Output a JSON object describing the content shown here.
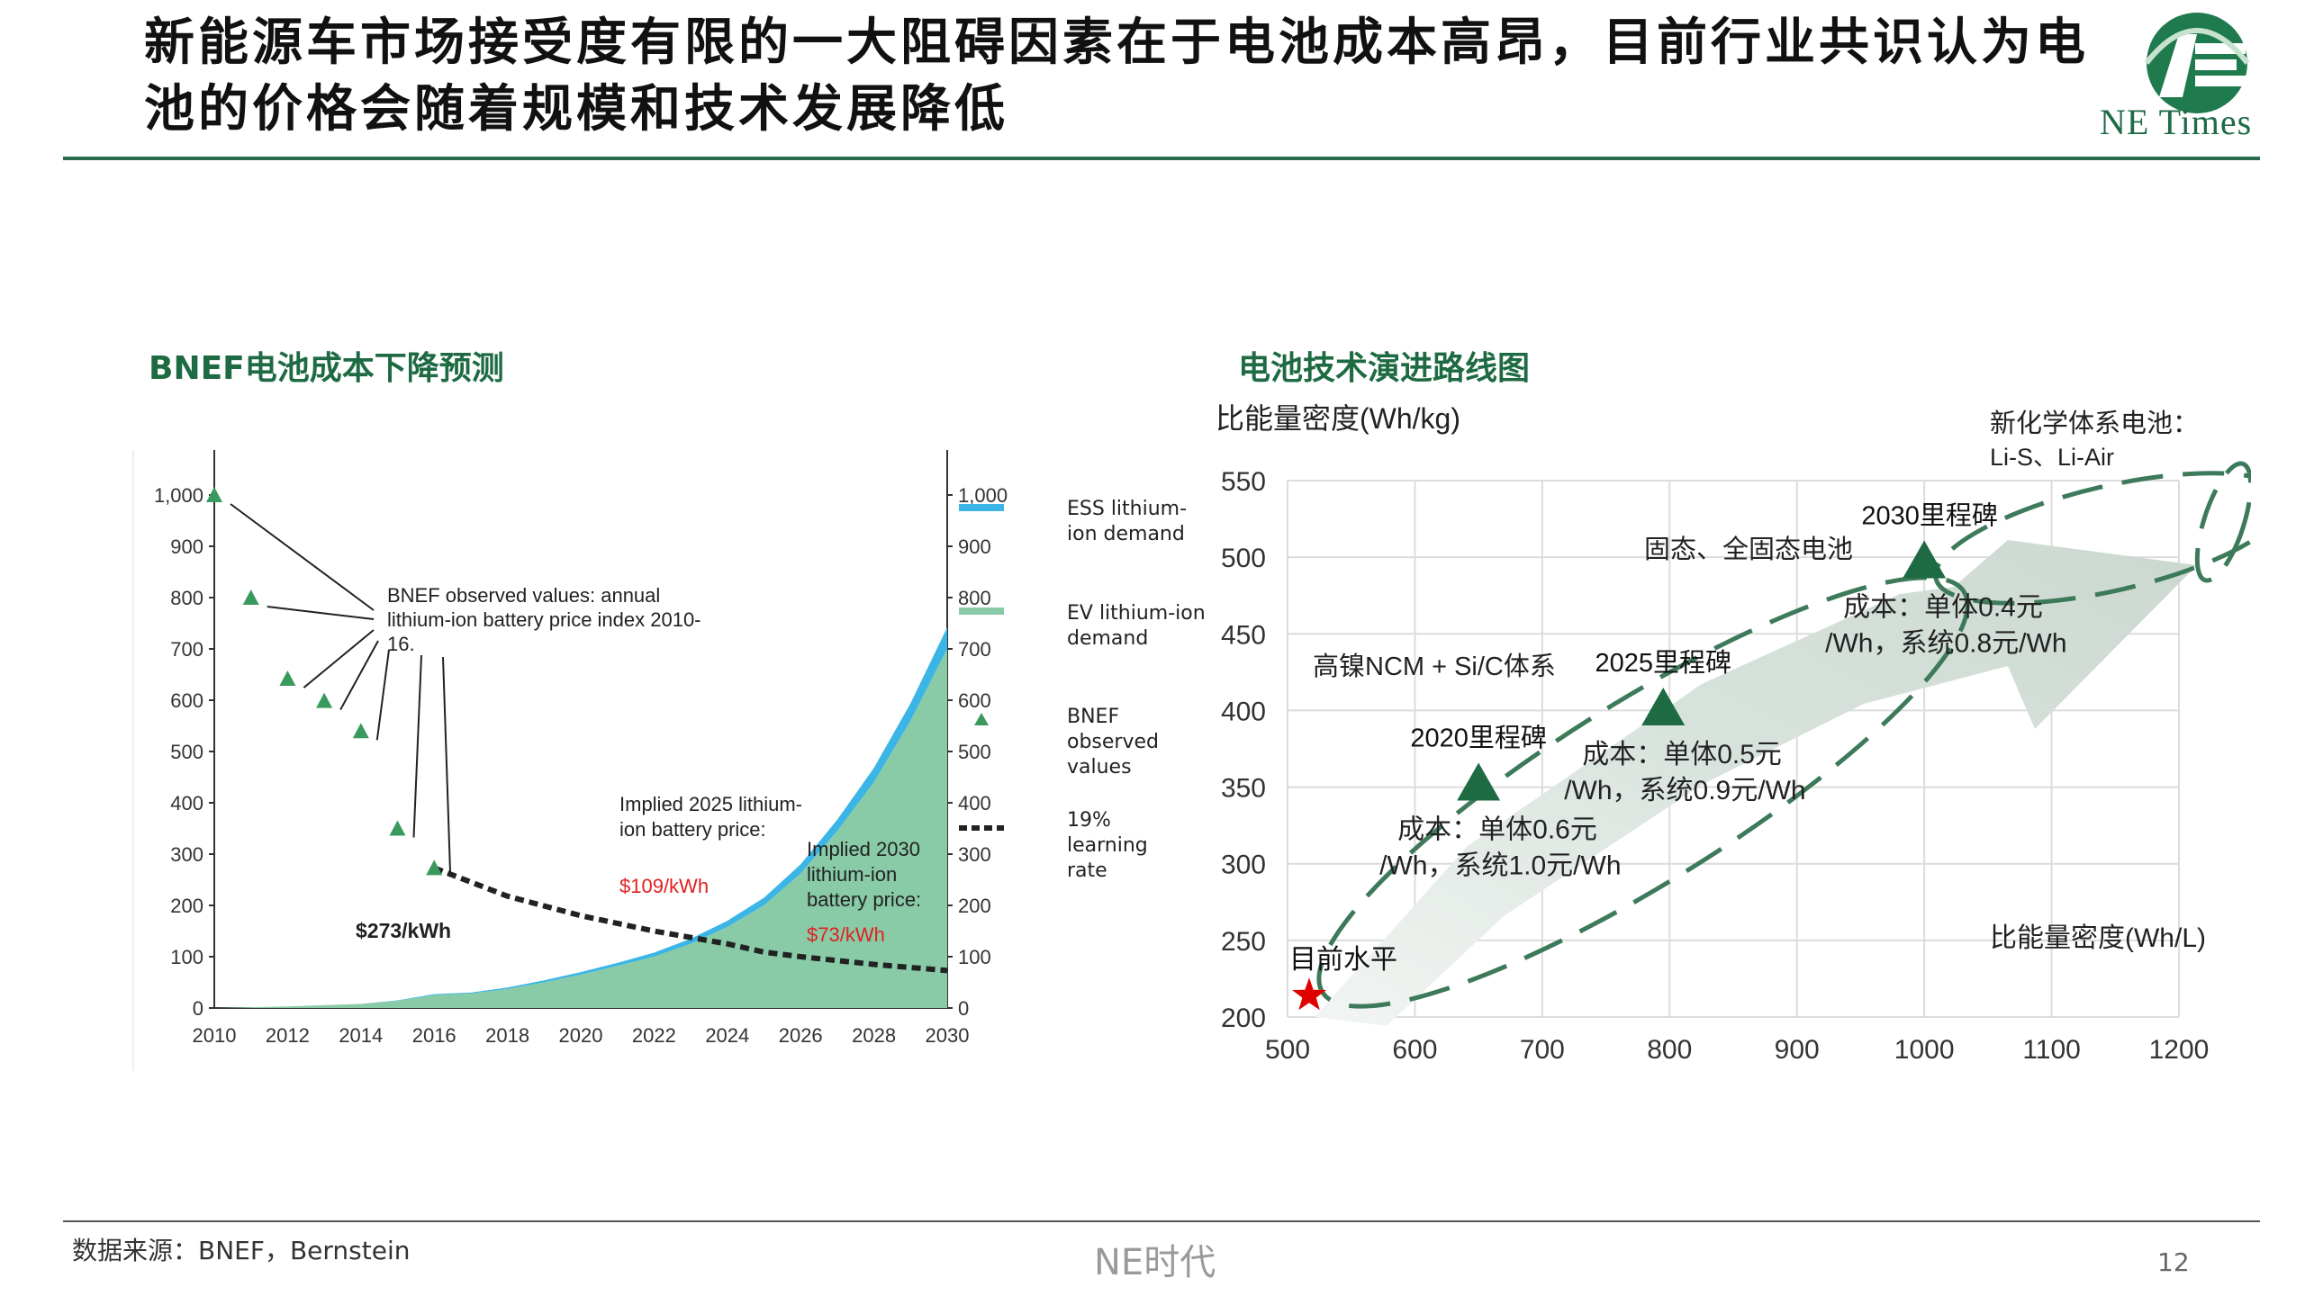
{
  "title": "新能源车市场接受度有限的一大阻碍因素在于电池成本高昂，目前行业共识认为电池的价格会随着规模和技术发展降低",
  "logo": {
    "text": "NE Times",
    "icon": "ne-times-logo",
    "brand_color": "#1f6b47"
  },
  "left_section_title": "BNEF电池成本下降预测",
  "right_section_title": "电池技术演进路线图",
  "footer": {
    "source": "数据来源：BNEF，Bernstein",
    "center": "NE时代",
    "page": "12"
  },
  "left_chart_data": {
    "type": "area",
    "x_ticks": [
      "2010",
      "2012",
      "2014",
      "2016",
      "2018",
      "2020",
      "2022",
      "2024",
      "2026",
      "2028",
      "2030"
    ],
    "y_ticks": [
      "0",
      "100",
      "200",
      "300",
      "400",
      "500",
      "600",
      "700",
      "800",
      "900",
      "1,000"
    ],
    "ylim": [
      0,
      1000
    ],
    "xlim": [
      2010,
      2030
    ],
    "demand_years": [
      2010,
      2012,
      2014,
      2015,
      2016,
      2017,
      2018,
      2019,
      2020,
      2021,
      2022,
      2023,
      2024,
      2025,
      2026,
      2027,
      2028,
      2029,
      2030
    ],
    "ev_demand": [
      0,
      3,
      8,
      14,
      25,
      28,
      37,
      50,
      65,
      82,
      100,
      125,
      158,
      200,
      262,
      345,
      440,
      560,
      700
    ],
    "ess_demand": [
      0,
      0,
      0,
      1,
      2,
      2,
      3,
      4,
      5,
      6,
      8,
      10,
      12,
      15,
      18,
      22,
      28,
      34,
      42
    ],
    "bnef_observed": [
      {
        "x": 2010,
        "y": 1000
      },
      {
        "x": 2011,
        "y": 800
      },
      {
        "x": 2012,
        "y": 642
      },
      {
        "x": 2013,
        "y": 599
      },
      {
        "x": 2014,
        "y": 540
      },
      {
        "x": 2015,
        "y": 350
      },
      {
        "x": 2016,
        "y": 273
      }
    ],
    "learning_rate_line": [
      {
        "x": 2016,
        "y": 273
      },
      {
        "x": 2018,
        "y": 218
      },
      {
        "x": 2020,
        "y": 180
      },
      {
        "x": 2022,
        "y": 150
      },
      {
        "x": 2024,
        "y": 125
      },
      {
        "x": 2025,
        "y": 109
      },
      {
        "x": 2026,
        "y": 100
      },
      {
        "x": 2028,
        "y": 85
      },
      {
        "x": 2030,
        "y": 73
      }
    ],
    "legend": [
      {
        "label": "ESS lithium-ion demand",
        "color": "#3bb5e5",
        "kind": "area"
      },
      {
        "label": "EV lithium-ion demand",
        "color": "#88cba6",
        "kind": "area"
      },
      {
        "label": "BNEF observed values",
        "color": "#3a9a5e",
        "kind": "triangle"
      },
      {
        "label": "19% learning rate",
        "color": "#222222",
        "kind": "dash"
      }
    ],
    "annotations": {
      "observed": "BNEF observed values: annual lithium-ion battery price index 2010-16.",
      "price_2016": "$273/kWh",
      "implied_2025": "Implied 2025 lithium-ion battery price:",
      "implied_2025_value": "$109/kWh",
      "implied_2030": "Implied 2030 lithium-ion battery price:",
      "implied_2030_value": "$73/kWh"
    },
    "colors": {
      "ev": "#88cba6",
      "ess": "#3bb5e5",
      "triangle": "#3a9a5e",
      "red": "#e02020"
    }
  },
  "right_chart_data": {
    "type": "scatter",
    "xlim": [
      500,
      1200
    ],
    "ylim": [
      200,
      550
    ],
    "x_ticks": [
      "500",
      "600",
      "700",
      "800",
      "900",
      "1000",
      "1100",
      "1200"
    ],
    "y_ticks": [
      "200",
      "250",
      "300",
      "350",
      "400",
      "450",
      "500",
      "550"
    ],
    "ylabel": "比能量密度(Wh/kg)",
    "xlabel": "比能量密度(Wh/L)",
    "points": [
      {
        "x": 517,
        "y": 214,
        "label": "目前水平",
        "shape": "star",
        "color": "#e00000"
      },
      {
        "x": 650,
        "y": 353,
        "label": "2020里程碑",
        "shape": "triangle",
        "color": "#1e6b43",
        "cost": "成本：单体0.6元/Wh，系统1.0元/Wh"
      },
      {
        "x": 795,
        "y": 402,
        "label": "2025里程碑",
        "shape": "triangle",
        "color": "#1e6b43",
        "cost": "成本：单体0.5元/Wh，系统0.9元/Wh"
      },
      {
        "x": 1000,
        "y": 498,
        "label": "2030里程碑",
        "shape": "triangle",
        "color": "#1e6b43",
        "cost": "成本：单体0.4元/Wh，系统0.8元/Wh"
      }
    ],
    "cost_lines": [
      [
        "成本：单体0.6元",
        "/Wh，系统1.0元/Wh"
      ],
      [
        "成本：单体0.5元",
        "/Wh，系统0.9元/Wh"
      ],
      [
        "成本：单体0.4元",
        "/Wh，系统0.8元/Wh"
      ]
    ],
    "technologies": [
      "高镍NCM + Si/C体系",
      "固态、全固态电池",
      "新化学体系电池：",
      "Li-S、Li-Air"
    ]
  }
}
